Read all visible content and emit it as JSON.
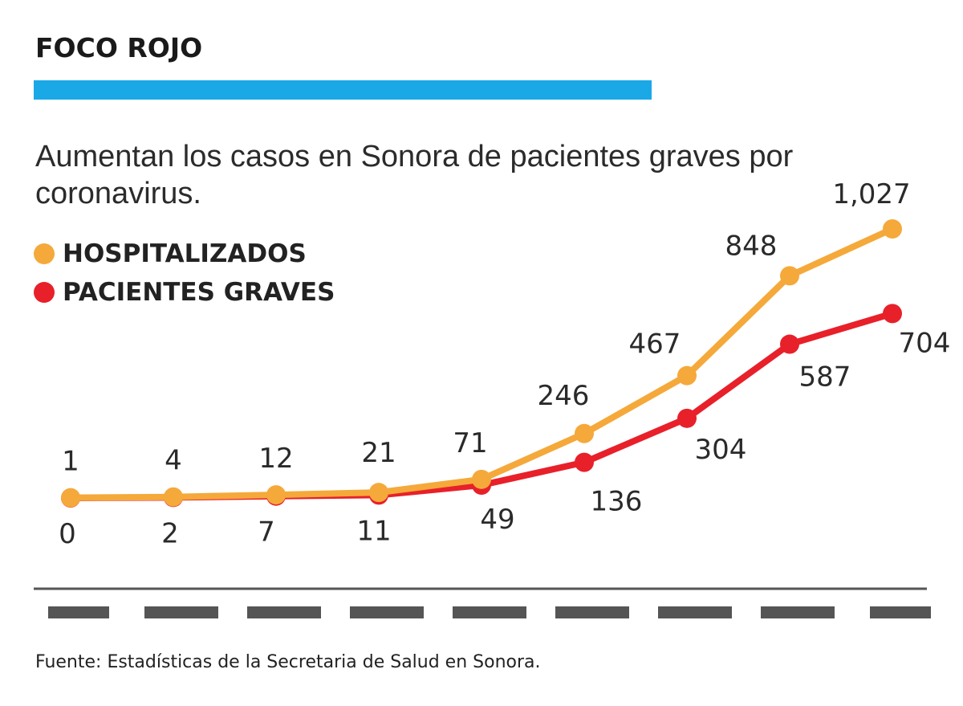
{
  "header": {
    "title": "FOCO ROJO",
    "accent_color": "#1aa8e6"
  },
  "subtitle": "Aumentan los casos en Sonora de pacientes graves por coronavirus.",
  "legend": [
    {
      "label": "HOSPITALIZADOS",
      "color": "#f5a93a"
    },
    {
      "label": "PACIENTES GRAVES",
      "color": "#e8202a"
    }
  ],
  "source": "Fuente: Estadísticas de la Secretaria de Salud en Sonora.",
  "chart_data": {
    "type": "line",
    "categories": [
      "",
      "",
      "",
      "",
      "",
      "",
      "",
      "",
      ""
    ],
    "series": [
      {
        "name": "HOSPITALIZADOS",
        "values": [
          1,
          4,
          12,
          21,
          71,
          246,
          467,
          848,
          1027
        ],
        "labels": [
          "1",
          "4",
          "12",
          "21",
          "71",
          "246",
          "467",
          "848",
          "1,027"
        ],
        "color": "#f5a93a"
      },
      {
        "name": "PACIENTES GRAVES",
        "values": [
          0,
          2,
          7,
          11,
          49,
          136,
          304,
          587,
          704
        ],
        "labels": [
          "0",
          "2",
          "7",
          "11",
          "49",
          "136",
          "304",
          "587",
          "704"
        ],
        "color": "#e8202a"
      }
    ],
    "ylim": [
      0,
      1027
    ],
    "grid": false,
    "legend_position": "top-left",
    "axis_color": "#555555",
    "tick_color": "#555555"
  }
}
